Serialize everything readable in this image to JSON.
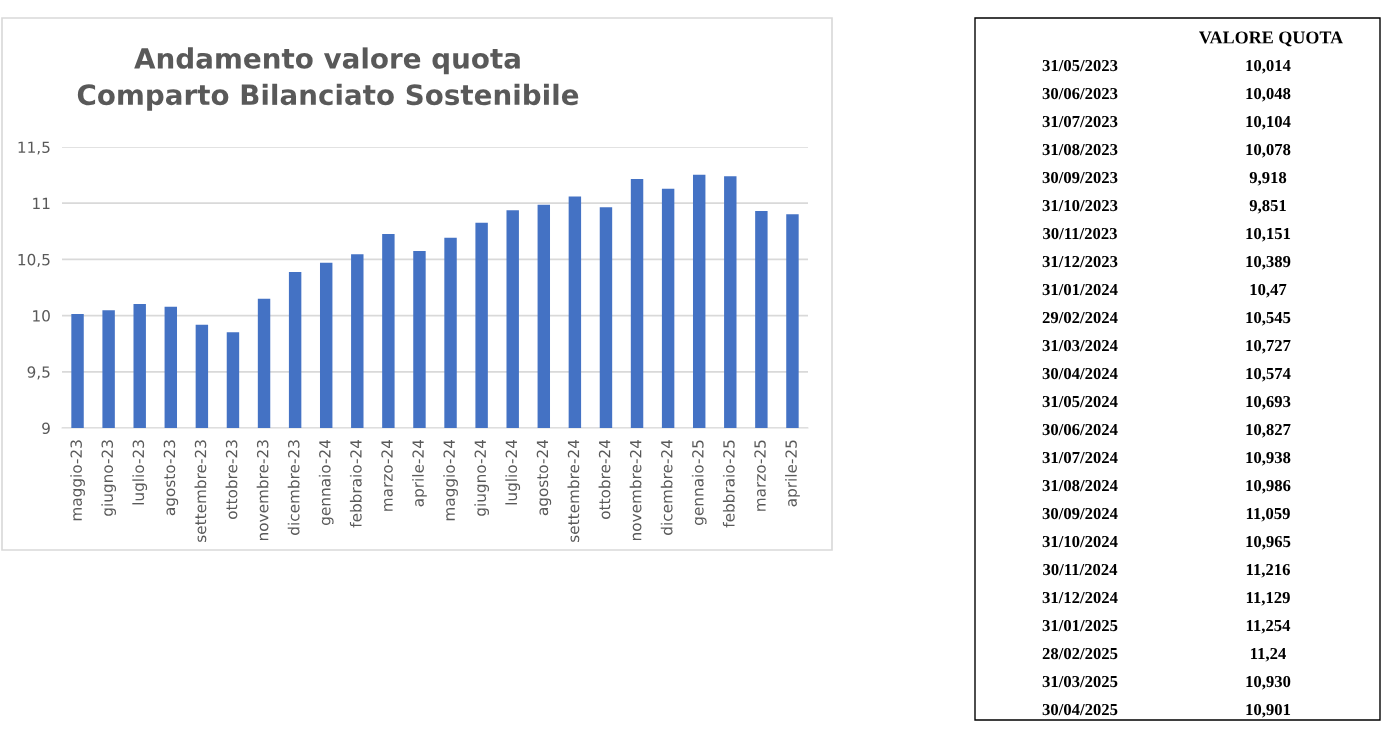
{
  "chart_data": [
    {
      "type": "bar",
      "title": "Andamento valore quota\nComparto Bilanciato Sostenibile",
      "categories": [
        "maggio-23",
        "giugno-23",
        "luglio-23",
        "agosto-23",
        "settembre-23",
        "ottobre-23",
        "novembre-23",
        "dicembre-23",
        "gennaio-24",
        "febbraio-24",
        "marzo-24",
        "aprile-24",
        "maggio-24",
        "giugno-24",
        "luglio-24",
        "agosto-24",
        "settembre-24",
        "ottobre-24",
        "novembre-24",
        "dicembre-24",
        "gennaio-25",
        "febbraio-25",
        "marzo-25",
        "aprile-25"
      ],
      "values": [
        10.014,
        10.048,
        10.104,
        10.078,
        9.918,
        9.851,
        10.151,
        10.389,
        10.47,
        10.545,
        10.727,
        10.574,
        10.693,
        10.827,
        10.938,
        10.986,
        11.059,
        10.965,
        11.216,
        11.129,
        11.254,
        11.24,
        10.93,
        10.901
      ],
      "color": "#4472c4",
      "ylim": [
        9,
        11.5
      ],
      "yticks": [
        9,
        {
          "value": 9.5,
          "label": "9,5"
        },
        10,
        {
          "value": 10.5,
          "label": "10,5"
        },
        11,
        {
          "value": 11.5,
          "label": "11,5"
        }
      ],
      "grid": "y"
    },
    {
      "type": "other",
      "title": "VALORE QUOTA",
      "categories": [
        "31/05/2023",
        "30/06/2023",
        "31/07/2023",
        "31/08/2023",
        "30/09/2023",
        "31/10/2023",
        "30/11/2023",
        "31/12/2023",
        "31/01/2024",
        "29/02/2024",
        "31/03/2024",
        "30/04/2024",
        "31/05/2024",
        "30/06/2024",
        "31/07/2024",
        "31/08/2024",
        "30/09/2024",
        "31/10/2024",
        "30/11/2024",
        "31/12/2024",
        "31/01/2025",
        "28/02/2025",
        "31/03/2025",
        "30/04/2025"
      ],
      "value_labels": [
        "10,014",
        "10,048",
        "10,104",
        "10,078",
        "9,918",
        "9,851",
        "10,151",
        "10,389",
        "10,47",
        "10,545",
        "10,727",
        "10,574",
        "10,693",
        "10,827",
        "10,938",
        "10,986",
        "11,059",
        "10,965",
        "11,216",
        "11,129",
        "11,254",
        "11,24",
        "10,930",
        "10,901"
      ]
    }
  ]
}
